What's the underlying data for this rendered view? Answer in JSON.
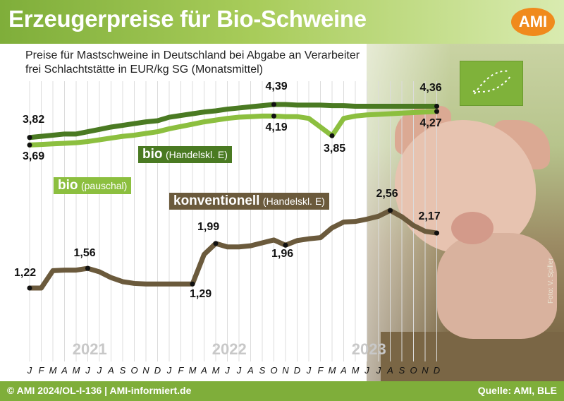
{
  "header": {
    "title": "Erzeugerpreise für Bio-Schweine",
    "logo": "AMI",
    "brand_color": "#7fae3a",
    "logo_color": "#f08a1c"
  },
  "subtitle": {
    "line1": "Preise für Mastschweine in Deutschland bei Abgabe an Verarbeiter",
    "line2": "frei Schlachtstätte in EUR/kg SG (Monatsmittel)"
  },
  "footer": {
    "left": "© AMI 2024/OL-I-136 | AMI-informiert.de",
    "right": "Quelle: AMI, BLE"
  },
  "photo_credit": "Foto: V. Spiller",
  "chart_data": {
    "type": "line",
    "title": "Erzeugerpreise für Bio-Schweine",
    "ylabel": "EUR/kg SG",
    "ylim": [
      0.5,
      4.9
    ],
    "grid": "vertical",
    "months": [
      "J",
      "F",
      "M",
      "A",
      "M",
      "J",
      "J",
      "A",
      "S",
      "O",
      "N",
      "D",
      "J",
      "F",
      "M",
      "A",
      "M",
      "J",
      "J",
      "A",
      "S",
      "O",
      "N",
      "D",
      "J",
      "F",
      "M",
      "A",
      "M",
      "J",
      "J",
      "A",
      "S",
      "O",
      "N",
      "D"
    ],
    "years": [
      "2021",
      "2022",
      "2023"
    ],
    "series": [
      {
        "name": "bio",
        "name_suffix": "(Handelskl. E)",
        "color": "#4a7a22",
        "values": [
          3.82,
          3.84,
          3.86,
          3.88,
          3.88,
          3.92,
          3.96,
          4.0,
          4.03,
          4.06,
          4.09,
          4.11,
          4.17,
          4.2,
          4.23,
          4.26,
          4.28,
          4.31,
          4.33,
          4.35,
          4.37,
          4.39,
          4.39,
          4.38,
          4.38,
          4.38,
          4.37,
          4.37,
          4.36,
          4.36,
          4.36,
          4.36,
          4.36,
          4.36,
          4.36,
          4.36
        ],
        "point_labels": [
          {
            "month": 0,
            "text": "3,82"
          },
          {
            "month": 21,
            "text": "4,39"
          },
          {
            "month": 35,
            "text": "4,36"
          }
        ]
      },
      {
        "name": "bio",
        "name_suffix": "(pauschal)",
        "color": "#8cbf3f",
        "values": [
          3.69,
          3.7,
          3.71,
          3.72,
          3.73,
          3.75,
          3.78,
          3.81,
          3.84,
          3.86,
          3.89,
          3.92,
          3.97,
          4.01,
          4.05,
          4.09,
          4.12,
          4.15,
          4.17,
          4.18,
          4.19,
          4.19,
          4.18,
          4.18,
          4.15,
          4.0,
          3.85,
          4.15,
          4.19,
          4.21,
          4.22,
          4.23,
          4.24,
          4.25,
          4.26,
          4.27
        ],
        "point_labels": [
          {
            "month": 0,
            "text": "3,69"
          },
          {
            "month": 21,
            "text": "4,19"
          },
          {
            "month": 26,
            "text": "3,85"
          },
          {
            "month": 35,
            "text": "4,27"
          }
        ]
      },
      {
        "name": "konventionell",
        "name_suffix": "(Handelskl. E)",
        "color": "#6b5a3c",
        "values": [
          1.22,
          1.22,
          1.52,
          1.53,
          1.53,
          1.56,
          1.5,
          1.4,
          1.33,
          1.3,
          1.29,
          1.29,
          1.29,
          1.29,
          1.29,
          1.8,
          1.99,
          1.93,
          1.93,
          1.95,
          2.0,
          2.05,
          1.96,
          2.04,
          2.07,
          2.09,
          2.26,
          2.36,
          2.37,
          2.41,
          2.46,
          2.56,
          2.45,
          2.3,
          2.2,
          2.17
        ],
        "point_labels": [
          {
            "month": 0,
            "text": "1,22"
          },
          {
            "month": 5,
            "text": "1,56"
          },
          {
            "month": 14,
            "text": "1,29"
          },
          {
            "month": 16,
            "text": "1,99"
          },
          {
            "month": 22,
            "text": "1,96"
          },
          {
            "month": 31,
            "text": "2,56"
          },
          {
            "month": 35,
            "text": "2,17"
          }
        ]
      }
    ]
  }
}
